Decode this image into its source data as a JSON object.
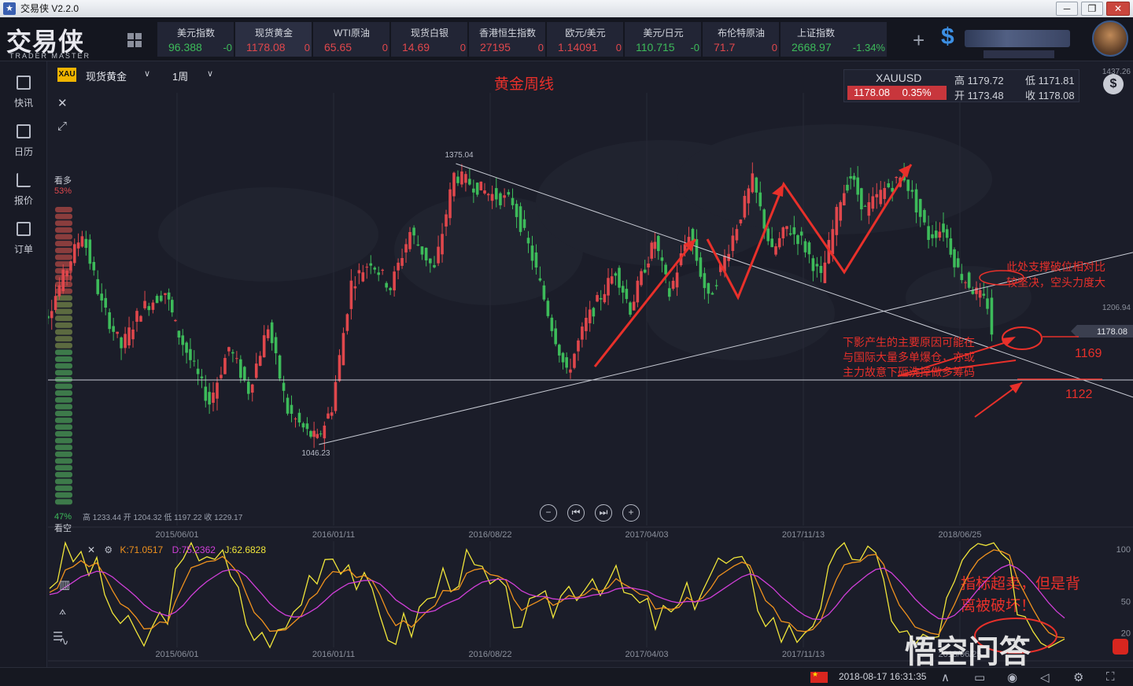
{
  "window": {
    "title": "交易侠 V2.2.0",
    "minimize": "─",
    "restore": "❐",
    "close": "✕"
  },
  "logo": {
    "main": "交易侠",
    "sub": "TRADER MASTER"
  },
  "quotes": [
    {
      "name": "美元指数",
      "price": "96.388",
      "change": "-0",
      "dir": "dn"
    },
    {
      "name": "现货黄金",
      "price": "1178.08",
      "change": "0",
      "dir": "up"
    },
    {
      "name": "WTI原油",
      "price": "65.65",
      "change": "0",
      "dir": "up"
    },
    {
      "name": "现货白银",
      "price": "14.69",
      "change": "0",
      "dir": "up"
    },
    {
      "name": "香港恒生指数",
      "price": "27195",
      "change": "0",
      "dir": "up"
    },
    {
      "name": "欧元/美元",
      "price": "1.14091",
      "change": "0",
      "dir": "up"
    },
    {
      "name": "美元/日元",
      "price": "110.715",
      "change": "-0",
      "dir": "dn"
    },
    {
      "name": "布伦特原油",
      "price": "71.7",
      "change": "0",
      "dir": "up"
    },
    {
      "name": "上证指数",
      "price": "2668.97",
      "change": "-1.34%",
      "dir": "dn"
    }
  ],
  "header": {
    "add": "+",
    "dollar": "$"
  },
  "sidebar": [
    {
      "label": "快讯",
      "icon": "news-icon"
    },
    {
      "label": "日历",
      "icon": "calendar-icon"
    },
    {
      "label": "报价",
      "icon": "quote-icon"
    },
    {
      "label": "订单",
      "icon": "order-icon"
    }
  ],
  "toolbar": {
    "badge": "XAU",
    "symbol": "现货黄金",
    "period": "1周",
    "caret": "∨",
    "close": "✕",
    "expand": "⤢"
  },
  "infobox": {
    "symbol": "XAUUSD",
    "price": "1178.08",
    "change": "0.35%",
    "high": "高 1179.72",
    "low": "低 1171.81",
    "open": "开 1173.48",
    "close": "收 1178.08",
    "coin": "$"
  },
  "sentiment": {
    "bull_label": "看多",
    "bull_pct": "53%",
    "bear_pct": "47%",
    "bear_label": "看空"
  },
  "ohlc_line": "高 1233.44 开 1204.32 低 1197.22 收 1229.17",
  "kdj": {
    "close": "✕",
    "gear": "⚙",
    "k": "K:71.0517",
    "d": "D:75.2362",
    "j": "J:62.6828"
  },
  "status": {
    "datetime": "2018-08-17 16:31:35"
  },
  "watermark": "悟空问答",
  "chart_data": {
    "type": "candlestick",
    "title": "黄金周线",
    "xlabel": "",
    "ylabel": "",
    "x_ticks": [
      "2015/06/01",
      "2016/01/11",
      "2016/08/22",
      "2017/04/03",
      "2017/11/13",
      "2018/06/25"
    ],
    "y_ticks_visible": [
      "1437.26",
      "1206.94",
      "1178.08"
    ],
    "last_price": 1178.08,
    "annotations_price": [
      "1375.04",
      "1046.23"
    ],
    "levels": [
      1169,
      1122
    ],
    "level_labels": [
      "1169",
      "1122"
    ],
    "price_path": [
      [
        "2014/11/03",
        1168
      ],
      [
        "2014/12/01",
        1200
      ],
      [
        "2015/01/19",
        1295
      ],
      [
        "2015/02/16",
        1210
      ],
      [
        "2015/03/16",
        1160
      ],
      [
        "2015/04/13",
        1205
      ],
      [
        "2015/05/18",
        1225
      ],
      [
        "2015/06/01",
        1185
      ],
      [
        "2015/07/20",
        1095
      ],
      [
        "2015/08/17",
        1160
      ],
      [
        "2015/09/14",
        1110
      ],
      [
        "2015/10/12",
        1185
      ],
      [
        "2015/11/09",
        1085
      ],
      [
        "2015/12/07",
        1060
      ],
      [
        "2015/12/21",
        1052
      ],
      [
        "2016/01/11",
        1090
      ],
      [
        "2016/02/08",
        1235
      ],
      [
        "2016/03/07",
        1262
      ],
      [
        "2016/04/04",
        1230
      ],
      [
        "2016/05/02",
        1295
      ],
      [
        "2016/06/06",
        1250
      ],
      [
        "2016/07/04",
        1362
      ],
      [
        "2016/08/01",
        1350
      ],
      [
        "2016/08/22",
        1340
      ],
      [
        "2016/09/26",
        1330
      ],
      [
        "2016/10/24",
        1265
      ],
      [
        "2016/11/21",
        1185
      ],
      [
        "2016/12/12",
        1128
      ],
      [
        "2017/01/09",
        1190
      ],
      [
        "2017/02/20",
        1250
      ],
      [
        "2017/03/13",
        1205
      ],
      [
        "2017/04/03",
        1255
      ],
      [
        "2017/04/17",
        1285
      ],
      [
        "2017/05/08",
        1222
      ],
      [
        "2017/06/05",
        1295
      ],
      [
        "2017/07/03",
        1215
      ],
      [
        "2017/08/07",
        1290
      ],
      [
        "2017/09/04",
        1355
      ],
      [
        "2017/10/02",
        1270
      ],
      [
        "2017/10/23",
        1300
      ],
      [
        "2017/11/13",
        1285
      ],
      [
        "2017/12/11",
        1240
      ],
      [
        "2018/01/08",
        1335
      ],
      [
        "2018/01/22",
        1360
      ],
      [
        "2018/02/12",
        1320
      ],
      [
        "2018/03/12",
        1345
      ],
      [
        "2018/04/09",
        1360
      ],
      [
        "2018/05/14",
        1290
      ],
      [
        "2018/06/04",
        1300
      ],
      [
        "2018/06/25",
        1250
      ],
      [
        "2018/07/16",
        1228
      ],
      [
        "2018/08/06",
        1210
      ],
      [
        "2018/08/13",
        1178
      ]
    ],
    "annotations_text": [
      "此处支撑破位相对比较坚决，空头力度大",
      "下影产生的主要原因可能在与国际大量多单爆仓，亦或主力故意下砸洗掉做多筹码"
    ],
    "kdj_range": [
      0,
      100
    ],
    "kdj_ticks": [
      "100",
      "50",
      "20"
    ],
    "kdj_annotation": "指标超卖，但是背离被破坏！",
    "series_kdj": [
      {
        "name": "K",
        "color": "#f0921e"
      },
      {
        "name": "D",
        "color": "#d03fd8"
      },
      {
        "name": "J",
        "color": "#f0e53a"
      }
    ],
    "colors": {
      "up": "#e0474c",
      "down": "#3dbb5a",
      "annot": "#e8302a"
    }
  }
}
